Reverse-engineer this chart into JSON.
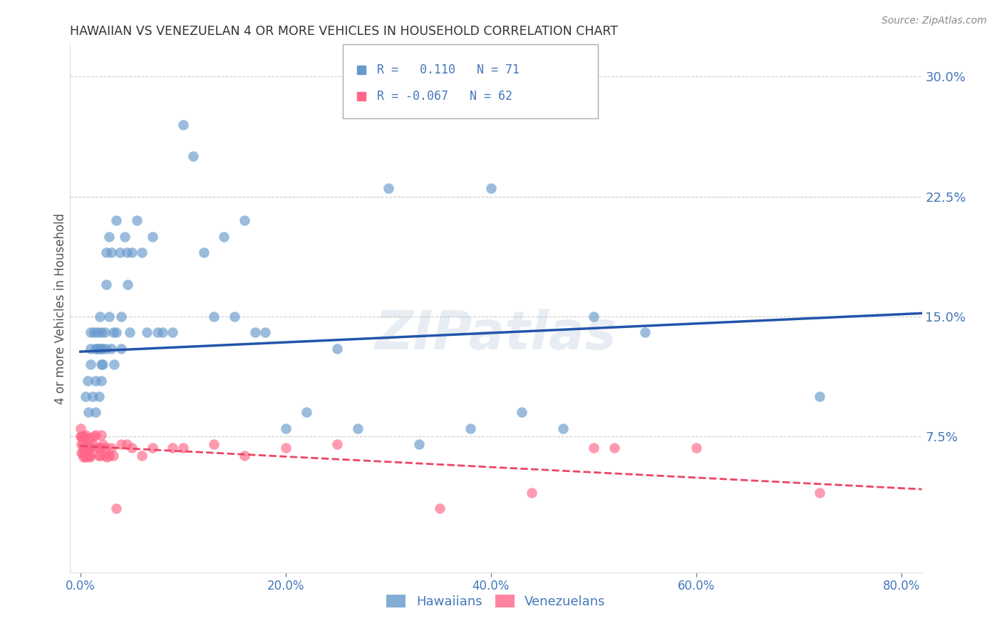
{
  "title": "HAWAIIAN VS VENEZUELAN 4 OR MORE VEHICLES IN HOUSEHOLD CORRELATION CHART",
  "source": "Source: ZipAtlas.com",
  "ylabel": "4 or more Vehicles in Household",
  "xlabel_ticks": [
    "0.0%",
    "20.0%",
    "40.0%",
    "60.0%",
    "80.0%"
  ],
  "xlabel_vals": [
    0.0,
    0.2,
    0.4,
    0.6,
    0.8
  ],
  "ylabel_ticks": [
    "7.5%",
    "15.0%",
    "22.5%",
    "30.0%"
  ],
  "ylabel_vals": [
    0.075,
    0.15,
    0.225,
    0.3
  ],
  "xlim": [
    -0.01,
    0.82
  ],
  "ylim": [
    -0.01,
    0.32
  ],
  "watermark": "ZIPatlas",
  "legend_hawaiian_R": "0.110",
  "legend_hawaiian_N": "71",
  "legend_venezuelan_R": "-0.067",
  "legend_venezuelan_N": "62",
  "hawaiian_color": "#6699CC",
  "venezuelan_color": "#FF6688",
  "trend_hawaiian_color": "#2255AA",
  "trend_venezuelan_color": "#EE4466",
  "hawaiian_x": [
    0.005,
    0.007,
    0.008,
    0.01,
    0.01,
    0.01,
    0.012,
    0.013,
    0.015,
    0.015,
    0.015,
    0.016,
    0.017,
    0.018,
    0.018,
    0.019,
    0.02,
    0.02,
    0.02,
    0.02,
    0.022,
    0.022,
    0.024,
    0.025,
    0.025,
    0.025,
    0.028,
    0.028,
    0.03,
    0.03,
    0.032,
    0.033,
    0.035,
    0.035,
    0.038,
    0.04,
    0.04,
    0.043,
    0.045,
    0.046,
    0.048,
    0.05,
    0.055,
    0.06,
    0.065,
    0.07,
    0.075,
    0.08,
    0.09,
    0.1,
    0.11,
    0.12,
    0.13,
    0.14,
    0.15,
    0.16,
    0.17,
    0.18,
    0.2,
    0.22,
    0.25,
    0.27,
    0.3,
    0.33,
    0.38,
    0.4,
    0.43,
    0.47,
    0.5,
    0.55,
    0.72
  ],
  "hawaiian_y": [
    0.1,
    0.11,
    0.09,
    0.13,
    0.14,
    0.12,
    0.1,
    0.14,
    0.13,
    0.11,
    0.09,
    0.13,
    0.14,
    0.1,
    0.13,
    0.15,
    0.12,
    0.14,
    0.13,
    0.11,
    0.13,
    0.12,
    0.14,
    0.19,
    0.13,
    0.17,
    0.2,
    0.15,
    0.13,
    0.19,
    0.14,
    0.12,
    0.14,
    0.21,
    0.19,
    0.15,
    0.13,
    0.2,
    0.19,
    0.17,
    0.14,
    0.19,
    0.21,
    0.19,
    0.14,
    0.2,
    0.14,
    0.14,
    0.14,
    0.27,
    0.25,
    0.19,
    0.15,
    0.2,
    0.15,
    0.21,
    0.14,
    0.14,
    0.08,
    0.09,
    0.13,
    0.08,
    0.23,
    0.07,
    0.08,
    0.23,
    0.09,
    0.08,
    0.15,
    0.14,
    0.1
  ],
  "venezuelan_x": [
    0.0,
    0.0,
    0.001,
    0.001,
    0.001,
    0.002,
    0.002,
    0.002,
    0.003,
    0.003,
    0.003,
    0.004,
    0.004,
    0.004,
    0.005,
    0.005,
    0.005,
    0.006,
    0.006,
    0.007,
    0.007,
    0.008,
    0.008,
    0.009,
    0.009,
    0.01,
    0.01,
    0.01,
    0.012,
    0.013,
    0.015,
    0.016,
    0.018,
    0.018,
    0.019,
    0.02,
    0.02,
    0.022,
    0.023,
    0.025,
    0.026,
    0.028,
    0.03,
    0.032,
    0.035,
    0.04,
    0.045,
    0.05,
    0.06,
    0.07,
    0.09,
    0.1,
    0.13,
    0.16,
    0.2,
    0.25,
    0.35,
    0.44,
    0.5,
    0.52,
    0.6,
    0.72
  ],
  "venezuelan_y": [
    0.075,
    0.08,
    0.065,
    0.07,
    0.075,
    0.065,
    0.07,
    0.075,
    0.062,
    0.068,
    0.075,
    0.063,
    0.068,
    0.074,
    0.062,
    0.068,
    0.076,
    0.063,
    0.068,
    0.063,
    0.07,
    0.063,
    0.068,
    0.062,
    0.068,
    0.063,
    0.068,
    0.074,
    0.07,
    0.075,
    0.076,
    0.068,
    0.063,
    0.068,
    0.063,
    0.068,
    0.076,
    0.07,
    0.063,
    0.068,
    0.062,
    0.063,
    0.068,
    0.063,
    0.03,
    0.07,
    0.07,
    0.068,
    0.063,
    0.068,
    0.068,
    0.068,
    0.07,
    0.063,
    0.068,
    0.07,
    0.03,
    0.04,
    0.068,
    0.068,
    0.068,
    0.04
  ],
  "background_color": "#FFFFFF",
  "grid_color": "#CCCCCC",
  "tick_color": "#4477BB",
  "title_color": "#333333",
  "watermark_color": "#BBCCDD",
  "watermark_alpha": 0.35,
  "hawaiian_trend_x0": 0.0,
  "hawaiian_trend_x1": 0.82,
  "hawaiian_trend_y0": 0.128,
  "hawaiian_trend_y1": 0.152,
  "venezuelan_trend_x0": 0.0,
  "venezuelan_trend_x1": 0.82,
  "venezuelan_trend_y0": 0.069,
  "venezuelan_trend_y1": 0.042
}
